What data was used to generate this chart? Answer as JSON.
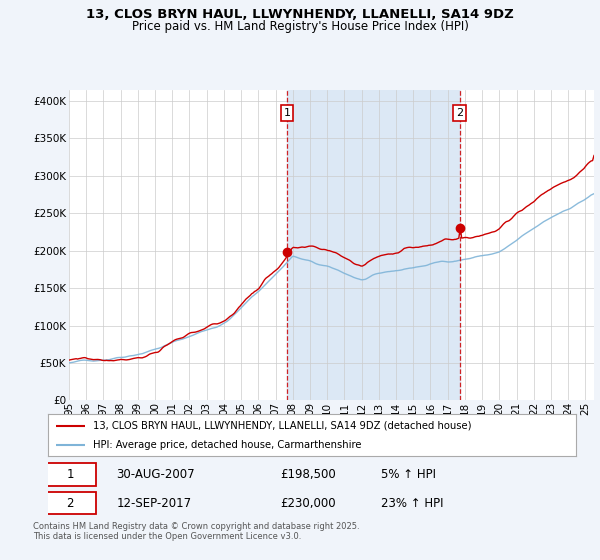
{
  "title": "13, CLOS BRYN HAUL, LLWYNHENDY, LLANELLI, SA14 9DZ",
  "subtitle": "Price paid vs. HM Land Registry's House Price Index (HPI)",
  "red_label": "13, CLOS BRYN HAUL, LLWYNHENDY, LLANELLI, SA14 9DZ (detached house)",
  "blue_label": "HPI: Average price, detached house, Carmarthenshire",
  "sale1_date": "30-AUG-2007",
  "sale1_price": "£198,500",
  "sale1_pct": "5% ↑ HPI",
  "sale1_year": 2007.66,
  "sale1_value": 198500,
  "sale2_date": "12-SEP-2017",
  "sale2_price": "£230,000",
  "sale2_pct": "23% ↑ HPI",
  "sale2_year": 2017.7,
  "sale2_value": 230000,
  "ylabel_values": [
    0,
    50000,
    100000,
    150000,
    200000,
    250000,
    300000,
    350000,
    400000
  ],
  "ylabel_labels": [
    "£0",
    "£50K",
    "£100K",
    "£150K",
    "£200K",
    "£250K",
    "£300K",
    "£350K",
    "£400K"
  ],
  "xmin": 1995,
  "xmax": 2025.5,
  "ymin": 0,
  "ymax": 415000,
  "background_color": "#f0f4fa",
  "plot_bg_color": "#ffffff",
  "shade_color": "#dce8f5",
  "grid_color": "#cccccc",
  "red_color": "#cc0000",
  "blue_color": "#7fb4d8",
  "footnote": "Contains HM Land Registry data © Crown copyright and database right 2025.\nThis data is licensed under the Open Government Licence v3.0."
}
